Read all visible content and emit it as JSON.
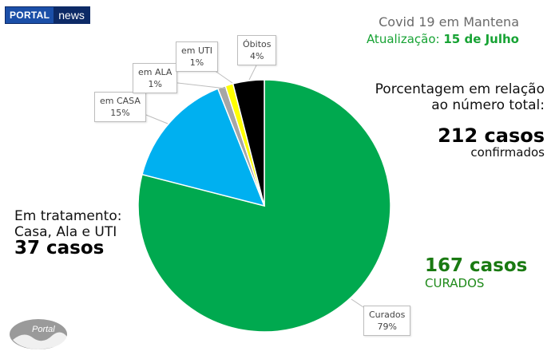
{
  "logo": {
    "part1": "PORTAL",
    "part2": "news",
    "bottom_text": "Portal"
  },
  "header": {
    "title": "Covid 19 em Mantena",
    "update_prefix": "Atualização:",
    "update_date": "15 de Julho"
  },
  "summary": {
    "pct_note_line1": "Porcentagem em relação",
    "pct_note_line2": "ao número total:",
    "total_num": "212 casos",
    "total_label": "confirmados",
    "treat_line1": "Em tratamento:",
    "treat_line2": "Casa, Ala e UTI",
    "treat_num": "37 casos",
    "cured_num": "167 casos",
    "cured_label": "CURADOS"
  },
  "callouts": {
    "curados": {
      "name": "Curados",
      "pct": "79%"
    },
    "casa": {
      "name": "em CASA",
      "pct": "15%"
    },
    "ala": {
      "name": "em ALA",
      "pct": "1%"
    },
    "uti": {
      "name": "em UTI",
      "pct": "1%"
    },
    "obitos": {
      "name": "Óbitos",
      "pct": "4%"
    }
  },
  "chart_data": {
    "type": "pie",
    "title": "Covid 19 em Mantena",
    "categories": [
      "Curados",
      "em CASA",
      "em ALA",
      "em UTI",
      "Óbitos"
    ],
    "values": [
      79,
      15,
      1,
      1,
      4
    ],
    "colors": [
      "#00a94f",
      "#00b0f0",
      "#a6a6a6",
      "#ffff00",
      "#000000"
    ],
    "start_angle_deg": 0,
    "direction": "clockwise"
  }
}
